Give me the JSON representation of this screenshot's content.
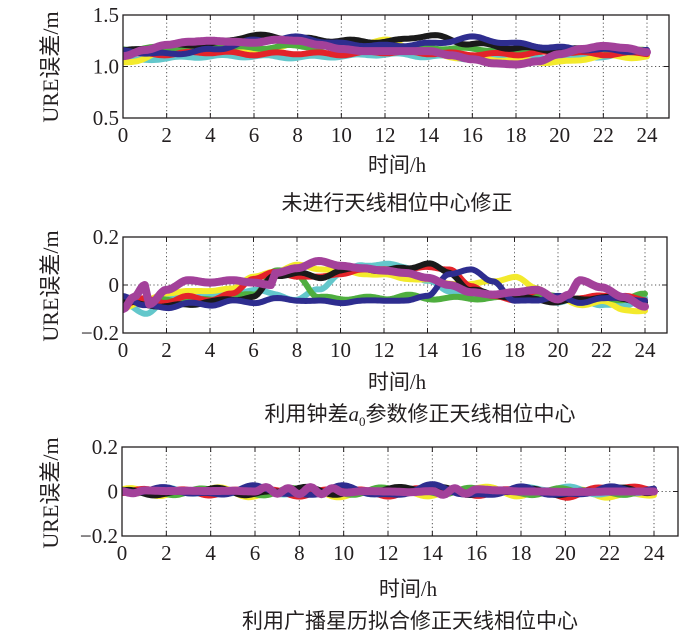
{
  "colors": {
    "magenta": "#a3419a",
    "blue": "#2e2d8f",
    "cyan": "#63c7cb",
    "yellow": "#f3ea2c",
    "green": "#4fae3f",
    "red": "#e3232a",
    "black": "#1a1a1a"
  },
  "chart_data": [
    {
      "type": "line",
      "title": "未进行天线相位中心修正",
      "xlabel": "时间/h",
      "ylabel": "URE误差/m",
      "xlim": [
        0,
        24
      ],
      "ylim": [
        0.5,
        1.5
      ],
      "xticks": [
        "0",
        "2",
        "4",
        "6",
        "8",
        "10",
        "12",
        "14",
        "16",
        "18",
        "20",
        "22",
        "24"
      ],
      "yticks": [
        "0.5",
        "1.0",
        "1.5"
      ],
      "ytick_values": [
        0.5,
        1.0,
        1.5
      ],
      "grid": "dotted",
      "hgrid_values": [
        1.0
      ],
      "series": [
        {
          "name": "cyan",
          "color": "cyan",
          "x": [
            0,
            2,
            4,
            6,
            8,
            10,
            12,
            14,
            16,
            18,
            20,
            22,
            24
          ],
          "values": [
            1.05,
            1.08,
            1.1,
            1.1,
            1.09,
            1.1,
            1.12,
            1.1,
            1.08,
            1.1,
            1.07,
            1.1,
            1.12
          ]
        },
        {
          "name": "yellow",
          "color": "yellow",
          "x": [
            0,
            2,
            4,
            6,
            8,
            10,
            12,
            14,
            16,
            18,
            20,
            22,
            24
          ],
          "values": [
            1.03,
            1.15,
            1.18,
            1.15,
            1.22,
            1.2,
            1.25,
            1.12,
            1.08,
            1.06,
            1.04,
            1.1,
            1.09
          ]
        },
        {
          "name": "green",
          "color": "green",
          "x": [
            0,
            2,
            4,
            6,
            8,
            10,
            12,
            14,
            16,
            18,
            20,
            22,
            24
          ],
          "values": [
            1.17,
            1.18,
            1.2,
            1.18,
            1.2,
            1.18,
            1.15,
            1.18,
            1.17,
            1.15,
            1.14,
            1.16,
            1.15
          ]
        },
        {
          "name": "red",
          "color": "red",
          "x": [
            0,
            2,
            4,
            6,
            8,
            10,
            12,
            14,
            16,
            18,
            20,
            22,
            24
          ],
          "values": [
            1.12,
            1.12,
            1.14,
            1.12,
            1.13,
            1.12,
            1.14,
            1.13,
            1.12,
            1.12,
            1.14,
            1.12,
            1.13
          ]
        },
        {
          "name": "black",
          "color": "black",
          "x": [
            0,
            2,
            4,
            6,
            8,
            10,
            12,
            14,
            16,
            18,
            20,
            22,
            24
          ],
          "values": [
            1.15,
            1.2,
            1.22,
            1.3,
            1.27,
            1.25,
            1.24,
            1.3,
            1.22,
            1.18,
            1.16,
            1.18,
            1.16
          ]
        },
        {
          "name": "blue",
          "color": "blue",
          "x": [
            0,
            2,
            4,
            6,
            8,
            10,
            12,
            14,
            16,
            18,
            20,
            22,
            24
          ],
          "values": [
            1.15,
            1.12,
            1.16,
            1.25,
            1.28,
            1.22,
            1.2,
            1.22,
            1.28,
            1.22,
            1.18,
            1.16,
            1.15
          ]
        },
        {
          "name": "magenta",
          "color": "magenta",
          "x": [
            0,
            1,
            2,
            3,
            4,
            5,
            6,
            7,
            8,
            9,
            10,
            11,
            12,
            13,
            14,
            15,
            16,
            17,
            18,
            19,
            20,
            21,
            22,
            23,
            24
          ],
          "values": [
            1.1,
            1.16,
            1.21,
            1.24,
            1.25,
            1.24,
            1.23,
            1.26,
            1.25,
            1.21,
            1.17,
            1.15,
            1.15,
            1.15,
            1.15,
            1.11,
            1.07,
            1.03,
            1.02,
            1.05,
            1.12,
            1.17,
            1.2,
            1.18,
            1.14
          ]
        }
      ]
    },
    {
      "type": "line",
      "title_parts": [
        "利用钟差",
        "a",
        "0",
        "参数修正天线相位中心"
      ],
      "xlabel": "时间/h",
      "ylabel": "URE误差/m",
      "xlim": [
        0,
        24
      ],
      "ylim": [
        -0.2,
        0.2
      ],
      "xticks": [
        "0",
        "2",
        "4",
        "6",
        "8",
        "10",
        "12",
        "14",
        "16",
        "18",
        "20",
        "22",
        "24"
      ],
      "yticks": [
        "−0.2",
        "0",
        "0.2"
      ],
      "ytick_values": [
        -0.2,
        0,
        0.2
      ],
      "grid": "dotted",
      "hgrid_values": [
        0
      ],
      "series": [
        {
          "name": "cyan",
          "color": "cyan",
          "x": [
            0,
            1,
            2,
            3,
            4,
            5,
            6,
            7,
            8,
            9,
            10,
            11,
            12,
            13,
            14,
            15,
            16,
            17,
            18,
            19,
            20,
            21,
            22,
            23,
            24
          ],
          "values": [
            -0.08,
            -0.12,
            -0.06,
            -0.05,
            -0.04,
            -0.03,
            -0.02,
            -0.04,
            -0.06,
            -0.02,
            0.05,
            0.08,
            0.09,
            0.07,
            0.02,
            -0.03,
            -0.04,
            -0.05,
            -0.04,
            -0.05,
            -0.07,
            -0.06,
            -0.08,
            -0.09,
            -0.05
          ]
        },
        {
          "name": "yellow",
          "color": "yellow",
          "x": [
            0,
            1,
            2,
            3,
            4,
            5,
            6,
            7,
            8,
            9,
            10,
            11,
            12,
            13,
            14,
            15,
            16,
            17,
            18,
            19,
            20,
            21,
            22,
            23,
            24
          ],
          "values": [
            -0.1,
            -0.06,
            -0.04,
            -0.02,
            -0.03,
            -0.01,
            0.03,
            0.06,
            0.08,
            0.07,
            0.06,
            0.05,
            0.04,
            0.03,
            0.02,
            0.01,
            0.0,
            0.02,
            0.03,
            -0.01,
            -0.06,
            -0.08,
            -0.07,
            -0.1,
            -0.11
          ]
        },
        {
          "name": "green",
          "color": "green",
          "x": [
            0,
            1,
            2,
            3,
            4,
            5,
            6,
            7,
            8,
            9,
            10,
            11,
            12,
            13,
            14,
            15,
            16,
            17,
            18,
            19,
            20,
            21,
            22,
            23,
            24
          ],
          "values": [
            -0.06,
            -0.07,
            -0.06,
            -0.07,
            -0.06,
            -0.05,
            -0.04,
            0.06,
            0.04,
            -0.05,
            -0.06,
            -0.05,
            -0.06,
            -0.04,
            -0.06,
            -0.05,
            -0.06,
            -0.05,
            -0.06,
            -0.04,
            -0.05,
            -0.06,
            -0.05,
            -0.06,
            -0.04
          ]
        },
        {
          "name": "red",
          "color": "red",
          "x": [
            0,
            1,
            2,
            3,
            4,
            5,
            6,
            7,
            8,
            9,
            10,
            11,
            12,
            13,
            14,
            15,
            16,
            17,
            18,
            19,
            20,
            21,
            22,
            23,
            24
          ],
          "values": [
            -0.08,
            -0.06,
            -0.07,
            -0.05,
            -0.06,
            -0.04,
            0.03,
            0.05,
            0.04,
            0.03,
            0.05,
            0.06,
            0.07,
            0.06,
            0.08,
            0.06,
            0.0,
            -0.05,
            -0.06,
            -0.03,
            -0.05,
            -0.06,
            -0.04,
            -0.05,
            -0.06
          ]
        },
        {
          "name": "black",
          "color": "black",
          "x": [
            0,
            1,
            2,
            3,
            4,
            5,
            6,
            7,
            8,
            9,
            10,
            11,
            12,
            13,
            14,
            15,
            16,
            17,
            18,
            19,
            20,
            21,
            22,
            23,
            24
          ],
          "values": [
            -0.07,
            -0.08,
            -0.09,
            -0.08,
            -0.07,
            -0.06,
            -0.05,
            0.04,
            0.05,
            0.03,
            0.06,
            0.07,
            0.06,
            0.07,
            0.09,
            0.05,
            -0.02,
            -0.04,
            -0.05,
            -0.06,
            -0.07,
            -0.06,
            -0.05,
            -0.06,
            -0.07
          ]
        },
        {
          "name": "blue",
          "color": "blue",
          "x": [
            0,
            1,
            2,
            3,
            4,
            5,
            6,
            7,
            8,
            9,
            10,
            11,
            12,
            13,
            14,
            15,
            16,
            17,
            18,
            19,
            20,
            21,
            22,
            23,
            24
          ],
          "values": [
            -0.05,
            -0.08,
            -0.1,
            -0.07,
            -0.09,
            -0.06,
            -0.08,
            -0.05,
            -0.07,
            -0.06,
            -0.08,
            -0.06,
            -0.07,
            -0.06,
            -0.05,
            0.05,
            0.06,
            0.02,
            -0.07,
            -0.06,
            -0.05,
            -0.07,
            -0.06,
            -0.05,
            -0.07
          ]
        },
        {
          "name": "magenta",
          "color": "magenta",
          "x": [
            0,
            0.5,
            1,
            1.2,
            2,
            3,
            4,
            5,
            6,
            6.8,
            7,
            8,
            9,
            10,
            11,
            12,
            13,
            14,
            15,
            16,
            17,
            18,
            19,
            20,
            20.5,
            21,
            22,
            23,
            24
          ],
          "values": [
            -0.1,
            -0.05,
            0.0,
            -0.08,
            -0.02,
            0.02,
            0.01,
            0.02,
            0.01,
            0.0,
            0.05,
            0.07,
            0.1,
            0.08,
            0.07,
            0.06,
            0.05,
            0.03,
            0.0,
            -0.03,
            -0.04,
            -0.03,
            -0.02,
            -0.06,
            -0.04,
            0.02,
            -0.01,
            -0.05,
            -0.09
          ]
        }
      ]
    },
    {
      "type": "line",
      "title": "利用广播星历拟合修正天线相位中心",
      "xlabel": "时间/h",
      "ylabel": "URE误差/m",
      "xlim": [
        0,
        24
      ],
      "ylim": [
        -0.2,
        0.2
      ],
      "xticks": [
        "0",
        "2",
        "4",
        "6",
        "8",
        "10",
        "12",
        "14",
        "16",
        "18",
        "20",
        "22",
        "24"
      ],
      "yticks": [
        "−0.2",
        "0",
        "0.2"
      ],
      "ytick_values": [
        -0.2,
        0,
        0.2
      ],
      "grid": "dotted",
      "hgrid_values": [
        0
      ],
      "series": [
        {
          "name": "yellow",
          "color": "yellow",
          "x": [
            0,
            2,
            4,
            6,
            8,
            10,
            12,
            14,
            16,
            18,
            20,
            22,
            24
          ],
          "values": [
            0.01,
            -0.015,
            0.015,
            -0.02,
            0.015,
            -0.02,
            0.01,
            -0.015,
            0.02,
            -0.015,
            0.01,
            -0.02,
            -0.01
          ]
        },
        {
          "name": "cyan",
          "color": "cyan",
          "x": [
            0,
            2,
            4,
            6,
            8,
            10,
            12,
            14,
            16,
            18,
            20,
            22,
            24
          ],
          "values": [
            -0.005,
            0.01,
            -0.01,
            0.012,
            -0.015,
            0.01,
            -0.012,
            0.015,
            -0.01,
            0.012,
            0.015,
            -0.012,
            0.005
          ]
        },
        {
          "name": "green",
          "color": "green",
          "x": [
            0,
            2,
            4,
            6,
            8,
            10,
            12,
            14,
            16,
            18,
            20,
            22,
            24
          ],
          "values": [
            0.0,
            -0.01,
            0.008,
            -0.012,
            0.01,
            -0.01,
            0.012,
            -0.008,
            0.01,
            -0.012,
            0.008,
            -0.01,
            0.0
          ]
        },
        {
          "name": "red",
          "color": "red",
          "x": [
            0,
            2,
            4,
            6,
            8,
            10,
            12,
            14,
            16,
            18,
            20,
            22,
            24
          ],
          "values": [
            0.0,
            0.008,
            -0.01,
            0.01,
            -0.015,
            0.012,
            -0.015,
            0.018,
            -0.012,
            0.01,
            -0.02,
            0.02,
            0.01
          ]
        },
        {
          "name": "black",
          "color": "black",
          "x": [
            0,
            2,
            4,
            6,
            8,
            10,
            12,
            14,
            16,
            18,
            20,
            22,
            24
          ],
          "values": [
            0.0,
            -0.012,
            0.01,
            -0.012,
            0.015,
            -0.01,
            0.012,
            0.015,
            -0.01,
            0.008,
            -0.01,
            0.012,
            0.0
          ]
        },
        {
          "name": "blue",
          "color": "blue",
          "x": [
            0,
            2,
            4,
            6,
            8,
            10,
            12,
            14,
            16,
            18,
            20,
            22,
            24
          ],
          "values": [
            0.0,
            0.012,
            -0.015,
            0.02,
            -0.018,
            0.02,
            -0.02,
            0.025,
            -0.02,
            0.015,
            -0.018,
            0.015,
            0.005
          ]
        },
        {
          "name": "magenta",
          "color": "magenta",
          "x": [
            0,
            0.5,
            1,
            2,
            3,
            4,
            5,
            6,
            6.5,
            7,
            7.5,
            8,
            8.5,
            9,
            9.5,
            10,
            11,
            12,
            13,
            14,
            14.5,
            15,
            15.5,
            16,
            17,
            18,
            19,
            20,
            21,
            22,
            23,
            24
          ],
          "values": [
            0.0,
            -0.008,
            0.005,
            0.002,
            0.003,
            0.002,
            0.003,
            0.0,
            0.02,
            -0.01,
            0.015,
            -0.012,
            0.02,
            -0.012,
            0.015,
            -0.005,
            0.002,
            0.0,
            -0.003,
            0.002,
            -0.015,
            0.015,
            -0.01,
            0.01,
            0.005,
            0.0,
            0.0,
            -0.002,
            -0.002,
            0.0,
            0.0,
            0.0
          ]
        }
      ]
    }
  ]
}
